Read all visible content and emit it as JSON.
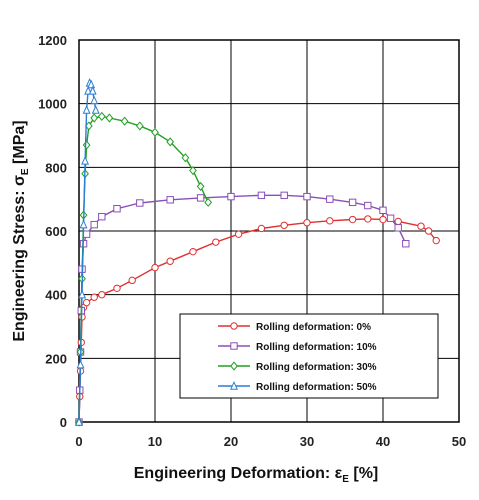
{
  "chart_data": {
    "type": "line",
    "xlabel_main": "Engineering Deformation: ε",
    "xlabel_sub": "E",
    "xlabel_tail": " [%]",
    "ylabel_main": "Engineering Stress: σ",
    "ylabel_sub": "E",
    "ylabel_tail": " [MPa]",
    "xlim": [
      0,
      50
    ],
    "ylim": [
      0,
      1200
    ],
    "xticks": [
      "0",
      "10",
      "20",
      "30",
      "40",
      "50"
    ],
    "yticks": [
      "0",
      "200",
      "400",
      "600",
      "800",
      "1000",
      "1200"
    ],
    "grid": true,
    "legend_position": "lower-right",
    "series": [
      {
        "name": "Rolling deformation:    0%",
        "color": "#e03030",
        "marker": "circle",
        "points": [
          [
            0,
            0
          ],
          [
            0.1,
            80
          ],
          [
            0.2,
            160
          ],
          [
            0.3,
            250
          ],
          [
            0.4,
            330
          ],
          [
            0.6,
            360
          ],
          [
            1,
            375
          ],
          [
            2,
            392
          ],
          [
            3,
            400
          ],
          [
            5,
            420
          ],
          [
            7,
            445
          ],
          [
            10,
            485
          ],
          [
            12,
            505
          ],
          [
            15,
            535
          ],
          [
            18,
            565
          ],
          [
            21,
            590
          ],
          [
            24,
            608
          ],
          [
            27,
            618
          ],
          [
            30,
            626
          ],
          [
            33,
            632
          ],
          [
            36,
            636
          ],
          [
            38,
            638
          ],
          [
            40,
            636
          ],
          [
            42,
            630
          ],
          [
            45,
            615
          ],
          [
            46,
            600
          ],
          [
            47,
            570
          ]
        ]
      },
      {
        "name": "Rolling deformation: 10%",
        "color": "#8a4fb8",
        "marker": "square",
        "points": [
          [
            0,
            0
          ],
          [
            0.1,
            100
          ],
          [
            0.2,
            220
          ],
          [
            0.3,
            350
          ],
          [
            0.4,
            480
          ],
          [
            0.6,
            560
          ],
          [
            1,
            590
          ],
          [
            2,
            620
          ],
          [
            3,
            645
          ],
          [
            5,
            670
          ],
          [
            8,
            688
          ],
          [
            12,
            698
          ],
          [
            16,
            704
          ],
          [
            20,
            708
          ],
          [
            24,
            712
          ],
          [
            27,
            712
          ],
          [
            30,
            708
          ],
          [
            33,
            700
          ],
          [
            36,
            690
          ],
          [
            38,
            680
          ],
          [
            40,
            665
          ],
          [
            41,
            640
          ],
          [
            42,
            610
          ],
          [
            43,
            560
          ]
        ]
      },
      {
        "name": "Rolling deformation: 30%",
        "color": "#20a020",
        "marker": "diamond",
        "points": [
          [
            0,
            0
          ],
          [
            0.2,
            220
          ],
          [
            0.4,
            450
          ],
          [
            0.6,
            650
          ],
          [
            0.8,
            780
          ],
          [
            1,
            870
          ],
          [
            1.3,
            930
          ],
          [
            2,
            955
          ],
          [
            3,
            960
          ],
          [
            4,
            955
          ],
          [
            6,
            945
          ],
          [
            8,
            930
          ],
          [
            10,
            910
          ],
          [
            12,
            880
          ],
          [
            14,
            830
          ],
          [
            15,
            790
          ],
          [
            16,
            740
          ],
          [
            17,
            690
          ]
        ]
      },
      {
        "name": "Rolling deformation: 50%",
        "color": "#2a7fd4",
        "marker": "triangle",
        "points": [
          [
            0,
            0
          ],
          [
            0.2,
            180
          ],
          [
            0.4,
            400
          ],
          [
            0.6,
            620
          ],
          [
            0.8,
            820
          ],
          [
            1,
            980
          ],
          [
            1.2,
            1040
          ],
          [
            1.4,
            1065
          ],
          [
            1.6,
            1060
          ],
          [
            1.8,
            1040
          ],
          [
            2,
            1010
          ],
          [
            2.2,
            980
          ]
        ]
      }
    ]
  }
}
